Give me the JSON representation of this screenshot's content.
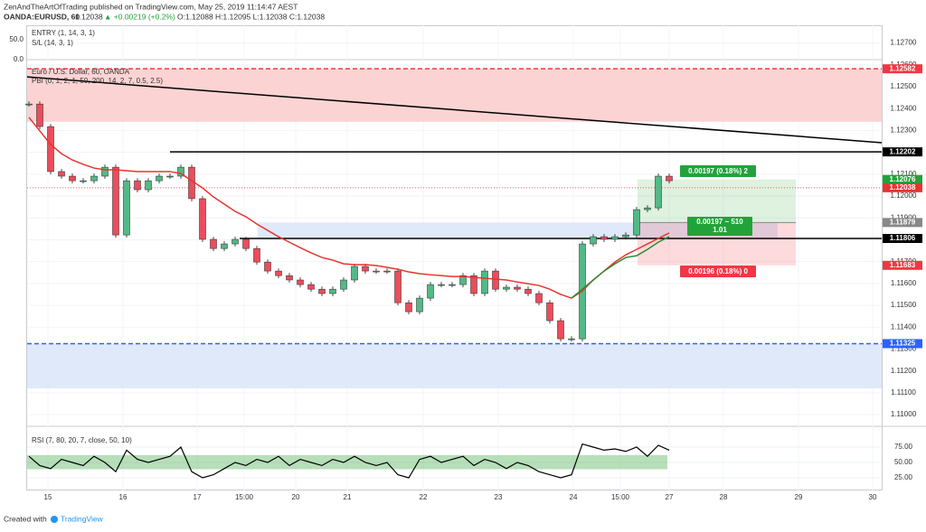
{
  "header": {
    "publisher": "ZenAndTheArtOfTrading published on TradingView.com, May 25, 2019 11:14:47 AEST",
    "symbol": "OANDA:EURUSD, 60",
    "last": "1.12038",
    "change": "▲ +0.00219 (+0.2%)",
    "ohlc": "O:1.12088 H:1.12095 L:1.12038 C:1.12038"
  },
  "footer": {
    "created": "Created with",
    "brand": "TradingView"
  },
  "chart_data": {
    "type": "candlestick",
    "indicators": [
      "ENTRY (1, 14, 3, 1)",
      "S/L (14, 3, 1)",
      "Euro / U.S. Dollar, 60, OANDA",
      "PBI (0, 1, 2, 1, 50, 200, 14, 2, 7, 0.5, 2.5)"
    ],
    "entry_pane_ticks": [
      {
        "value": 50,
        "label": "50.0"
      },
      {
        "value": 0,
        "label": "0.0"
      }
    ],
    "ylim": [
      1.10955,
      1.12781
    ],
    "yticks": [
      {
        "value": 1.127,
        "label": "1.12700"
      },
      {
        "value": 1.126,
        "label": "1.12600"
      },
      {
        "value": 1.125,
        "label": "1.12500"
      },
      {
        "value": 1.124,
        "label": "1.12400"
      },
      {
        "value": 1.123,
        "label": "1.12300"
      },
      {
        "value": 1.122,
        "label": "1.12200"
      },
      {
        "value": 1.121,
        "label": "1.12100"
      },
      {
        "value": 1.12,
        "label": "1.12000"
      },
      {
        "value": 1.119,
        "label": "1.11900"
      },
      {
        "value": 1.118,
        "label": "1.11800"
      },
      {
        "value": 1.117,
        "label": "1.11700"
      },
      {
        "value": 1.116,
        "label": "1.11600"
      },
      {
        "value": 1.115,
        "label": "1.11500"
      },
      {
        "value": 1.114,
        "label": "1.11400"
      },
      {
        "value": 1.113,
        "label": "1.11300"
      },
      {
        "value": 1.112,
        "label": "1.11200"
      },
      {
        "value": 1.111,
        "label": "1.11100"
      },
      {
        "value": 1.11,
        "label": "1.11000"
      }
    ],
    "x_labels": [
      "15",
      "16",
      "17",
      "15:00",
      "20",
      "21",
      "22",
      "23",
      "24",
      "15:00",
      "27",
      "28",
      "29",
      "30"
    ],
    "up_color": "#53b987",
    "down_color": "#eb4d5c",
    "close": [
      1.12421,
      1.12318,
      1.12112,
      1.12091,
      1.1207,
      1.1207,
      1.12091,
      1.12132,
      1.11822,
      1.1207,
      1.12029,
      1.1207,
      1.12091,
      1.12091,
      1.12132,
      1.11988,
      1.11802,
      1.1176,
      1.11781,
      1.11802,
      1.1176,
      1.11698,
      1.11657,
      1.11636,
      1.11616,
      1.11595,
      1.11574,
      1.11554,
      1.11574,
      1.11616,
      1.11678,
      1.11657,
      1.11657,
      1.11657,
      1.11512,
      1.11471,
      1.11533,
      1.11595,
      1.11595,
      1.11595,
      1.11636,
      1.11554,
      1.11657,
      1.11574,
      1.11583,
      1.11574,
      1.11554,
      1.11512,
      1.1143,
      1.11347,
      1.11347,
      1.11781,
      1.11814,
      1.11802,
      1.11814,
      1.11822,
      1.11938,
      1.11946,
      1.12091,
      1.1207
    ],
    "ma_red": {
      "color": "#e8342f",
      "values": [
        1.1236,
        1.12298,
        1.12236,
        1.12194,
        1.12165,
        1.12145,
        1.12128,
        1.1212,
        1.1212,
        1.12116,
        1.12112,
        1.12112,
        1.12112,
        1.12112,
        1.12103,
        1.1207,
        1.12037,
        1.11996,
        1.11963,
        1.1193,
        1.11905,
        1.11872,
        1.11843,
        1.11814,
        1.11789,
        1.11764,
        1.1174,
        1.11719,
        1.11707,
        1.1169,
        1.11686,
        1.11686,
        1.11682,
        1.11674,
        1.11665,
        1.11653,
        1.11645,
        1.1164,
        1.11636,
        1.11632,
        1.11632,
        1.11628,
        1.11624,
        1.1162,
        1.11616,
        1.11607,
        1.11599,
        1.11591,
        1.11574,
        1.1155,
        1.11533,
        1.11566,
        1.11616,
        1.11657,
        1.11698,
        1.11731,
        1.11756,
        1.11781,
        1.11806,
        1.11831
      ]
    },
    "ma_green": {
      "color": "#2e8b2e",
      "values": [
        null,
        null,
        null,
        null,
        null,
        null,
        null,
        null,
        null,
        null,
        null,
        null,
        null,
        null,
        null,
        null,
        null,
        null,
        null,
        null,
        null,
        null,
        null,
        null,
        null,
        null,
        null,
        null,
        null,
        null,
        null,
        null,
        null,
        null,
        null,
        null,
        null,
        null,
        null,
        null,
        null,
        null,
        null,
        null,
        null,
        null,
        null,
        null,
        null,
        null,
        1.11533,
        1.11574,
        1.11616,
        1.11657,
        1.1169,
        1.11719,
        1.11727,
        1.11756,
        1.11789,
        1.11814
      ]
    },
    "trendline": {
      "color": "#000000",
      "values": [
        1.12545,
        1.12244
      ]
    },
    "zones": [
      {
        "from": 1.12582,
        "to": 1.1234,
        "color": "#fbd3d3"
      },
      {
        "from": 1.11325,
        "to": 1.1112,
        "color": "#dfe9f9"
      },
      {
        "from": 1.11879,
        "to": 1.11806,
        "color": "#dfe9f9"
      }
    ],
    "levels": [
      {
        "value": 1.12582,
        "color": "#f23645",
        "style": "dashed"
      },
      {
        "value": 1.12202,
        "color": "#000000",
        "style": "solid"
      },
      {
        "value": 1.12076,
        "color": "#22a33a",
        "style": "none"
      },
      {
        "value": 1.12038,
        "color": "#e8342f",
        "style": "dotted"
      },
      {
        "value": 1.11879,
        "color": "#888888",
        "style": "none"
      },
      {
        "value": 1.11806,
        "color": "#000000",
        "style": "solid"
      },
      {
        "value": 1.11683,
        "color": "#f23645",
        "style": "none"
      },
      {
        "value": 1.11325,
        "color": "#2962ff",
        "style": "dashed"
      }
    ],
    "position": {
      "target": 1.12076,
      "entry": 1.11879,
      "stop": 1.11683,
      "target_label": "0.00197 (0.18%) 2",
      "ratio_label": "0.00197 ~ 510",
      "ratio": "1.01",
      "stop_label": "0.00196 (0.18%) 0"
    },
    "rsi": {
      "title": "RSI (7, 80, 20, 7, close, 50, 10)",
      "ylim": [
        0,
        100
      ],
      "band": [
        39,
        62
      ],
      "yticks": [
        {
          "value": 75,
          "label": "75.00"
        },
        {
          "value": 50,
          "label": "50.00"
        },
        {
          "value": 25,
          "label": "25.00"
        }
      ],
      "values": [
        60,
        45,
        40,
        55,
        50,
        45,
        60,
        50,
        35,
        70,
        55,
        50,
        55,
        60,
        75,
        35,
        25,
        30,
        40,
        50,
        45,
        55,
        50,
        60,
        45,
        55,
        50,
        45,
        55,
        50,
        60,
        50,
        45,
        50,
        30,
        25,
        55,
        60,
        50,
        55,
        60,
        45,
        55,
        50,
        40,
        50,
        45,
        35,
        30,
        25,
        30,
        80,
        75,
        70,
        72,
        68,
        75,
        60,
        78,
        70
      ]
    }
  }
}
